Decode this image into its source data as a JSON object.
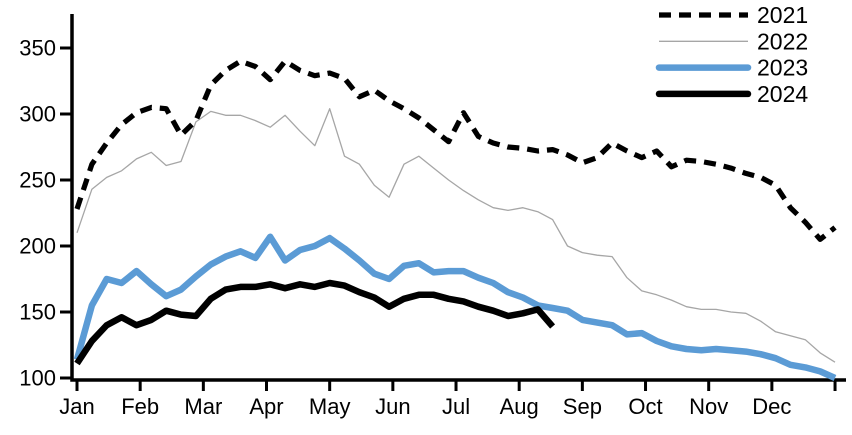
{
  "chart_data": {
    "type": "line",
    "title": "",
    "xlabel": "",
    "ylabel": "",
    "grid": "off",
    "legend_position": "top-right",
    "x_axis": {
      "tick_labels": [
        "Jan",
        "Feb",
        "Mar",
        "Apr",
        "May",
        "Jun",
        "Jul",
        "Aug",
        "Sep",
        "Oct",
        "Nov",
        "Dec"
      ],
      "num_tick_marks": 13,
      "range_months": [
        0,
        12
      ]
    },
    "y_axis": {
      "ticks": [
        100,
        150,
        200,
        250,
        300,
        350
      ],
      "range": [
        100,
        350
      ]
    },
    "points_per_month": 4.333,
    "series": [
      {
        "name": "2021",
        "color": "#000000",
        "line_style": "dashed",
        "thickness": "medium",
        "values": [
          228,
          262,
          278,
          292,
          301,
          305,
          304,
          284,
          295,
          322,
          333,
          340,
          336,
          326,
          340,
          333,
          329,
          331,
          327,
          313,
          318,
          310,
          304,
          297,
          288,
          279,
          301,
          283,
          278,
          275,
          274,
          272,
          273,
          269,
          263,
          267,
          278,
          272,
          267,
          272,
          260,
          265,
          264,
          262,
          259,
          255,
          252,
          246,
          229,
          218,
          205,
          214
        ]
      },
      {
        "name": "2022",
        "color": "#A6A6A6",
        "line_style": "solid",
        "thickness": "thin",
        "values": [
          210,
          243,
          252,
          257,
          266,
          271,
          261,
          264,
          294,
          302,
          299,
          299,
          295,
          290,
          299,
          287,
          276,
          304,
          268,
          262,
          246,
          237,
          262,
          268,
          259,
          250,
          242,
          235,
          229,
          227,
          229,
          226,
          220,
          200,
          195,
          193,
          192,
          176,
          166,
          163,
          159,
          154,
          152,
          152,
          150,
          149,
          143,
          135,
          132,
          129,
          119,
          112
        ]
      },
      {
        "name": "2023",
        "color": "#5B9BD5",
        "line_style": "solid",
        "thickness": "thick",
        "values": [
          114,
          155,
          175,
          172,
          181,
          171,
          162,
          167,
          177,
          186,
          192,
          196,
          191,
          207,
          189,
          197,
          200,
          206,
          198,
          189,
          179,
          175,
          185,
          187,
          180,
          181,
          181,
          176,
          172,
          165,
          161,
          155,
          153,
          151,
          144,
          142,
          140,
          133,
          134,
          128,
          124,
          122,
          121,
          122,
          121,
          120,
          118,
          115,
          110,
          108,
          105,
          100
        ]
      },
      {
        "name": "2024",
        "color": "#000000",
        "line_style": "solid",
        "thickness": "thick",
        "values": [
          111,
          128,
          140,
          146,
          140,
          144,
          151,
          148,
          147,
          160,
          167,
          169,
          169,
          171,
          168,
          171,
          169,
          172,
          170,
          165,
          161,
          154,
          160,
          163,
          163,
          160,
          158,
          154,
          151,
          147,
          149,
          152,
          139
        ]
      }
    ]
  }
}
